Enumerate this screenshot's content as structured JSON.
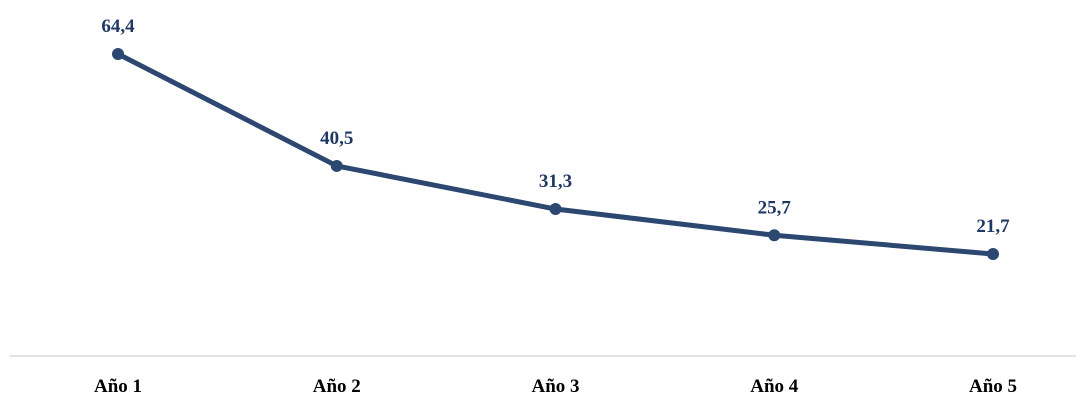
{
  "chart_data": {
    "type": "line",
    "categories": [
      "Año 1",
      "Año 2",
      "Año 3",
      "Año 4",
      "Año 5"
    ],
    "series": [
      {
        "values": [
          64.4,
          40.5,
          31.3,
          25.7,
          21.7
        ],
        "value_labels": [
          "64,4",
          "40,5",
          "31,3",
          "25,7",
          "21,7"
        ],
        "color": "#2c4770"
      }
    ],
    "title": "",
    "xlabel": "",
    "ylabel": "",
    "ylim": [
      0,
      70
    ],
    "grid": false,
    "legend": "none",
    "axis_color": "#d9d9d9",
    "label_color": "#1f3864"
  }
}
